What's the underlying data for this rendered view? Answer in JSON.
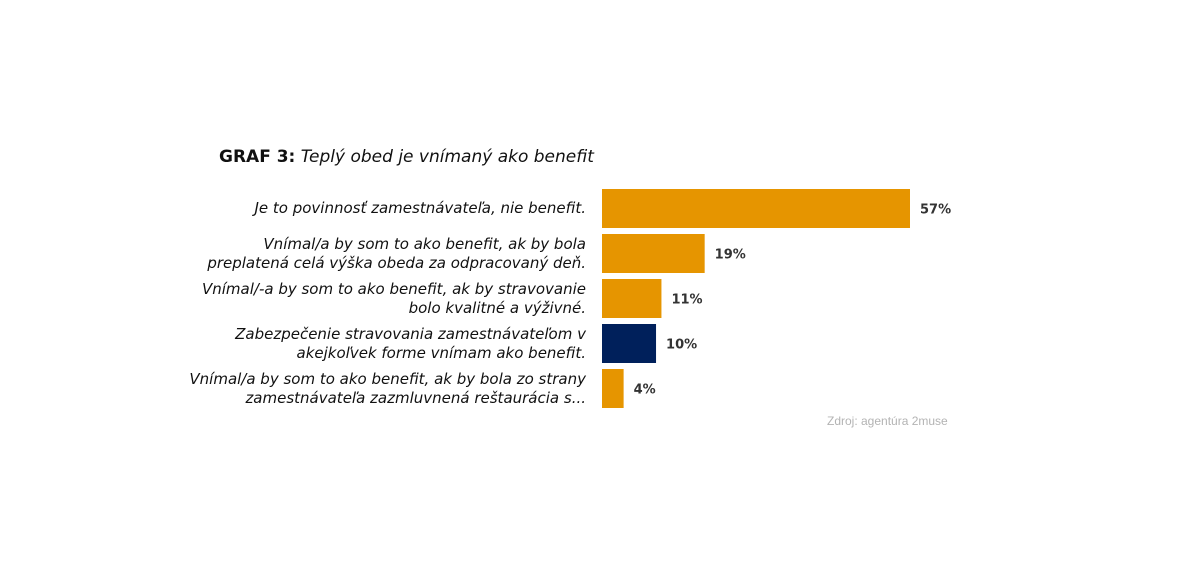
{
  "chart_data": {
    "type": "bar",
    "orientation": "horizontal",
    "title_prefix": "GRAF 3:",
    "title": "Teplý obed je vnímaný ako benefit",
    "categories": [
      [
        "Je to povinnosť zamestnávateľa, nie benefit."
      ],
      [
        "Vnímal/a by som to ako benefit, ak by bola",
        "preplatená celá výška obeda za odpracovaný deň."
      ],
      [
        "Vnímal/-a by som to ako benefit, ak by stravovanie",
        "bolo kvalitné a výživné."
      ],
      [
        "Zabezpečenie stravovania zamestnávateľom v",
        "akejkoľvek forme vnímam ako benefit."
      ],
      [
        "Vnímal/a by som to ako benefit, ak by bola zo strany",
        "zamestnávateľa zazmluvnená reštaurácia s..."
      ]
    ],
    "values": [
      57,
      19,
      11,
      10,
      4
    ],
    "value_labels": [
      "57%",
      "19%",
      "11%",
      "10%",
      "4%"
    ],
    "bar_colors": [
      "#E69500",
      "#E69500",
      "#E69500",
      "#00205B",
      "#E69500"
    ],
    "xlim": [
      0,
      57
    ],
    "grid": false,
    "legend": "none",
    "source": "Zdroj: agentúra 2muse"
  }
}
